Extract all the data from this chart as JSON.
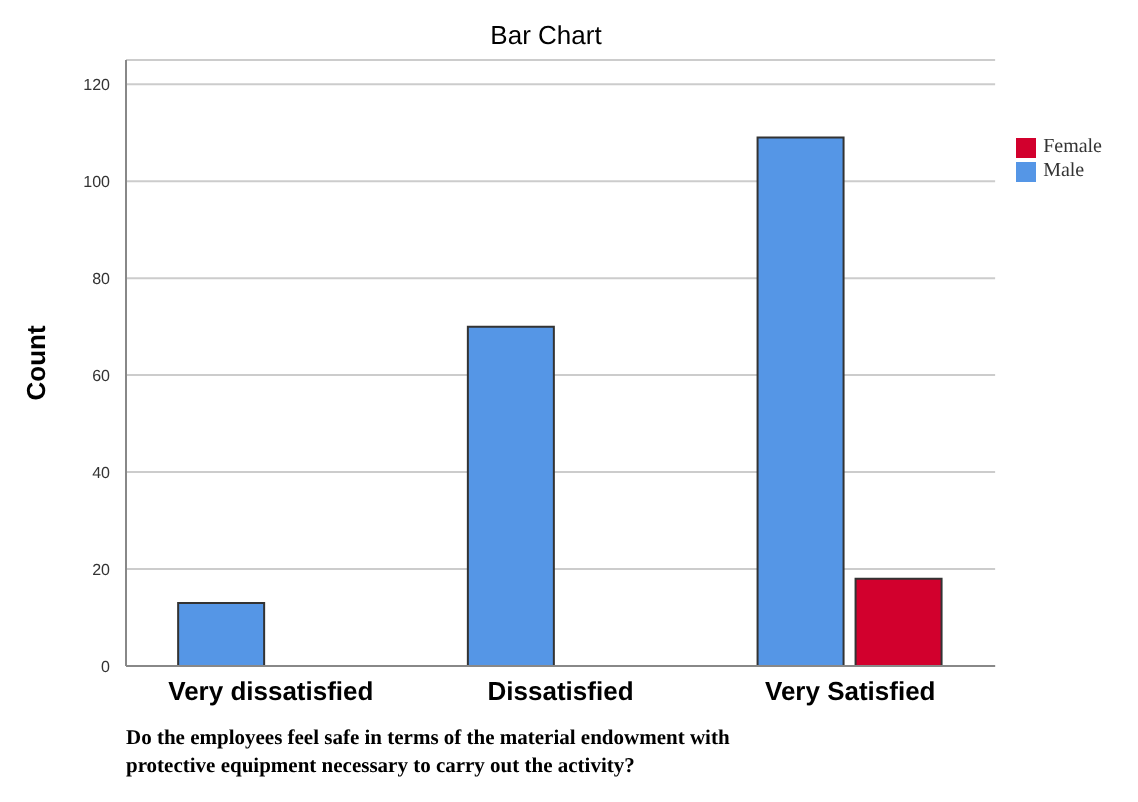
{
  "chart_data": {
    "type": "bar",
    "title": "Bar Chart",
    "ylabel": "Count",
    "categories": [
      "Very dissatisfied",
      "Dissatisfied",
      "Very Satisfied"
    ],
    "series": [
      {
        "name": "Male",
        "color": "#5596e6",
        "values": [
          13,
          70,
          109
        ]
      },
      {
        "name": "Female",
        "color": "#d2002d",
        "values": [
          null,
          null,
          18
        ]
      }
    ],
    "ylim": [
      0,
      125
    ],
    "yticks": [
      0,
      20,
      40,
      60,
      80,
      100,
      120
    ],
    "grid": "y",
    "legend": "top right",
    "annotations": [
      "Do the employees feel safe in terms of the material endowment with protective equipment necessary to carry out the activity?"
    ]
  }
}
